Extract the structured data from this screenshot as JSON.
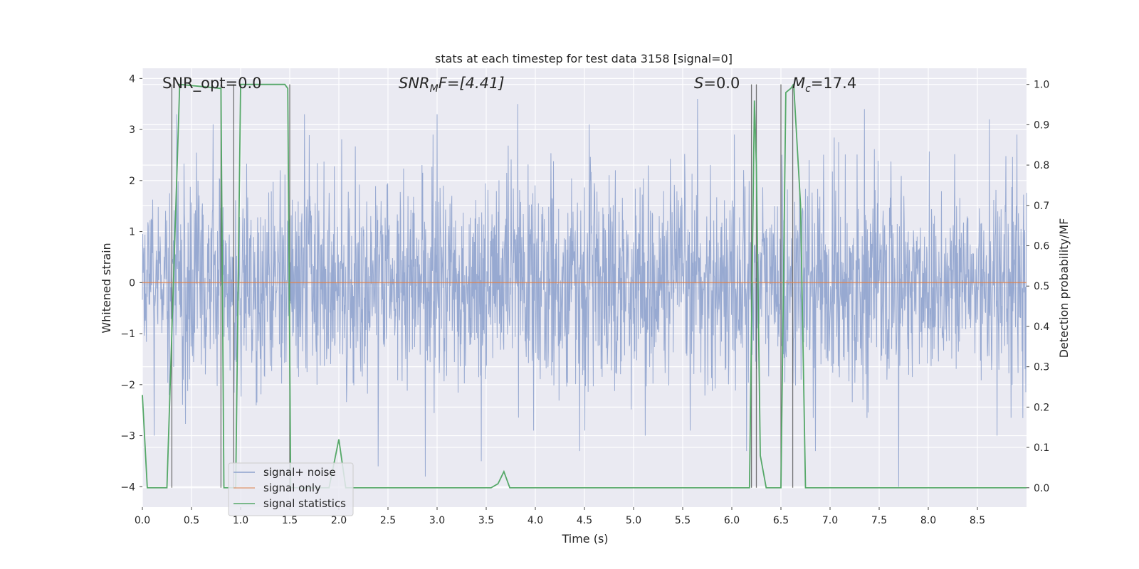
{
  "chart_data": {
    "type": "line",
    "title": "stats at each timestep for test data 3158 [signal=0]",
    "xlabel": "Time (s)",
    "ylabel_left": "Whitened strain",
    "ylabel_right": "Detection probability/MF",
    "xlim": [
      0.0,
      9.0
    ],
    "ylim_left": [
      -4.4,
      4.2
    ],
    "ylim_right": [
      -0.048,
      1.04
    ],
    "x_ticks": [
      0.0,
      0.5,
      1.0,
      1.5,
      2.0,
      2.5,
      3.0,
      3.5,
      4.0,
      4.5,
      5.0,
      5.5,
      6.0,
      6.5,
      7.0,
      7.5,
      8.0,
      8.5
    ],
    "x_tick_labels": [
      "0.0",
      "0.5",
      "1.0",
      "1.5",
      "2.0",
      "2.5",
      "3.0",
      "3.5",
      "4.0",
      "4.5",
      "5.0",
      "5.5",
      "6.0",
      "6.5",
      "7.0",
      "7.5",
      "8.0",
      "8.5"
    ],
    "y_left_ticks": [
      4,
      3,
      2,
      1,
      0,
      -1,
      -2,
      -3,
      -4
    ],
    "y_left_tick_labels": [
      "4",
      "3",
      "2",
      "1",
      "0",
      "−1",
      "−2",
      "−3",
      "−4"
    ],
    "y_right_ticks": [
      1.0,
      0.9,
      0.8,
      0.7,
      0.6,
      0.5,
      0.4,
      0.3,
      0.2,
      0.1,
      0.0
    ],
    "y_right_tick_labels": [
      "1.0",
      "0.9",
      "0.8",
      "0.7",
      "0.6",
      "0.5",
      "0.4",
      "0.3",
      "0.2",
      "0.1",
      "0.0"
    ],
    "annotations": {
      "snr_opt": "SNR_opt=0.0",
      "snr_mf_sym": "SNR",
      "snr_mf_sub": "M",
      "snr_mf_rest": "F=[4.41]",
      "s_sym": "S",
      "s_rest": "=0.0",
      "mc_sym": "M",
      "mc_sub": "c",
      "mc_rest": "=17.4"
    },
    "legend": {
      "position": "lower-left",
      "entries": [
        "signal+ noise",
        "signal only",
        "signal statistics"
      ]
    },
    "series": [
      {
        "name": "signal+ noise",
        "color": "#8ea2cd",
        "description": "whitened strain, approx. Gaussian noise, |y| up to ~3.6",
        "noise_core_std": 1.0,
        "peak_spikes": [
          [
            0.35,
            3.3
          ],
          [
            0.72,
            3.1
          ],
          [
            1.65,
            3.3
          ],
          [
            2.4,
            3.1
          ],
          [
            3.0,
            3.3
          ],
          [
            3.82,
            3.5
          ],
          [
            4.55,
            3.1
          ],
          [
            5.65,
            3.6
          ],
          [
            6.85,
            3.2
          ],
          [
            7.35,
            3.4
          ],
          [
            8.62,
            3.2
          ]
        ],
        "trough_spikes": [
          [
            0.12,
            -3.0
          ],
          [
            2.4,
            -3.6
          ],
          [
            2.88,
            -3.8
          ],
          [
            3.45,
            -3.5
          ],
          [
            4.45,
            -3.3
          ],
          [
            5.12,
            -3.0
          ],
          [
            6.15,
            -3.3
          ],
          [
            6.85,
            -3.3
          ],
          [
            7.7,
            -4.0
          ],
          [
            8.7,
            -3.0
          ]
        ]
      },
      {
        "name": "signal only",
        "color": "#dd8452",
        "x": [
          0.0,
          9.0
        ],
        "y": [
          0.0,
          0.0
        ]
      },
      {
        "name": "signal statistics",
        "color": "#55a868",
        "axis": "right",
        "x": [
          0.0,
          0.05,
          0.25,
          0.38,
          0.8,
          0.83,
          0.92,
          0.95,
          1.0,
          1.45,
          1.48,
          1.51,
          1.9,
          2.0,
          2.07,
          2.2,
          3.55,
          3.62,
          3.68,
          3.74,
          6.18,
          6.23,
          6.25,
          6.29,
          6.35,
          6.5,
          6.55,
          6.6,
          6.63,
          6.7,
          6.75,
          9.0
        ],
        "y": [
          0.23,
          0.0,
          0.0,
          1.0,
          0.99,
          0.0,
          0.0,
          0.0,
          1.0,
          1.0,
          0.99,
          0.0,
          0.0,
          0.12,
          0.0,
          0.0,
          0.0,
          0.01,
          0.04,
          0.0,
          0.0,
          0.96,
          0.8,
          0.08,
          0.0,
          0.0,
          0.98,
          0.99,
          1.0,
          0.7,
          0.0,
          0.0
        ]
      },
      {
        "name": "marker lines",
        "color": "#555555",
        "x_positions": [
          0.3,
          0.8,
          0.93,
          1.5,
          6.2,
          6.25,
          6.5,
          6.62
        ]
      }
    ]
  }
}
